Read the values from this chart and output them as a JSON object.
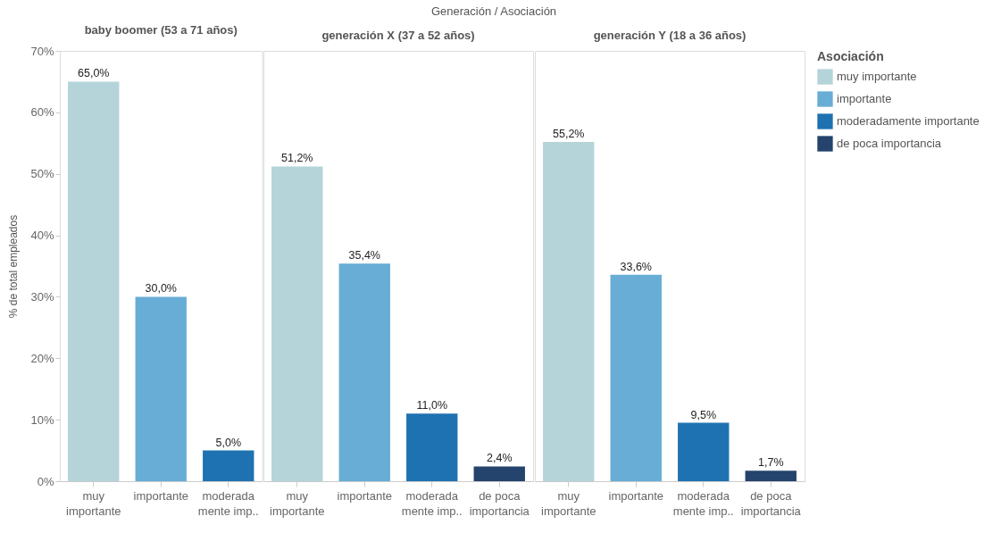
{
  "chart_data": [
    {
      "type": "bar",
      "title": "baby boomer (53 a 71 años)",
      "annotations": [
        "Generación  /  Asociación"
      ],
      "ylabel": "% de total empleados",
      "categories": [
        "muy importante",
        "importante",
        "moderada mente imp.."
      ],
      "ylim": [
        0,
        70
      ],
      "yticks": [
        {
          "value": 0,
          "label": "0%"
        },
        {
          "value": 10,
          "label": "10%"
        },
        {
          "value": 20,
          "label": "20%"
        },
        {
          "value": 30,
          "label": "30%"
        },
        {
          "value": 40,
          "label": "40%"
        },
        {
          "value": 50,
          "label": "50%"
        },
        {
          "value": 60,
          "label": "60%"
        },
        {
          "value": 70,
          "label": "70%"
        }
      ],
      "grid": false,
      "legend": false,
      "series": [
        {
          "color": "#b4d4da",
          "values": [
            65.0,
            null,
            null
          ],
          "value_labels": [
            "65,0%",
            null,
            null
          ]
        },
        {
          "color": "#67add6",
          "values": [
            null,
            30.0,
            null
          ],
          "value_labels": [
            null,
            "30,0%",
            null
          ]
        },
        {
          "color": "#1f72b1",
          "values": [
            null,
            null,
            5.0
          ],
          "value_labels": [
            null,
            null,
            "5,0%"
          ]
        }
      ]
    },
    {
      "type": "bar",
      "title": "generación X (37 a 52 años)",
      "categories": [
        "muy importante",
        "importante",
        "moderada mente imp..",
        "de poca importancia"
      ],
      "ylim": [
        0,
        70
      ],
      "tick_labels": "x",
      "grid": false,
      "legend": false,
      "series": [
        {
          "color": "#b4d4da",
          "values": [
            51.2,
            null,
            null,
            null
          ],
          "value_labels": [
            "51,2%",
            null,
            null,
            null
          ]
        },
        {
          "color": "#67add6",
          "values": [
            null,
            35.4,
            null,
            null
          ],
          "value_labels": [
            null,
            "35,4%",
            null,
            null
          ]
        },
        {
          "color": "#1f72b1",
          "values": [
            null,
            null,
            11.0,
            null
          ],
          "value_labels": [
            null,
            null,
            "11,0%",
            null
          ]
        },
        {
          "color": "#24436d",
          "values": [
            null,
            null,
            null,
            2.4
          ],
          "value_labels": [
            null,
            null,
            null,
            "2,4%"
          ]
        }
      ]
    },
    {
      "type": "bar",
      "title": "generación Y (18 a 36 años)",
      "categories": [
        "muy importante",
        "importante",
        "moderada mente imp..",
        "de poca importancia"
      ],
      "ylim": [
        0,
        70
      ],
      "tick_labels": "x",
      "grid": false,
      "legend": "right",
      "legend_title": "Asociación",
      "series": [
        {
          "name": "muy importante",
          "color": "#b4d4da",
          "values": [
            55.2,
            null,
            null,
            null
          ],
          "value_labels": [
            "55,2%",
            null,
            null,
            null
          ]
        },
        {
          "name": "importante",
          "color": "#67add6",
          "values": [
            null,
            33.6,
            null,
            null
          ],
          "value_labels": [
            null,
            "33,6%",
            null,
            null
          ]
        },
        {
          "name": "moderadamente importante",
          "color": "#1f72b1",
          "values": [
            null,
            null,
            9.5,
            null
          ],
          "value_labels": [
            null,
            null,
            "9,5%",
            null
          ]
        },
        {
          "name": "de poca importancia",
          "color": "#24436d",
          "values": [
            null,
            null,
            null,
            1.7
          ],
          "value_labels": [
            null,
            null,
            null,
            "1,7%"
          ]
        }
      ]
    }
  ]
}
